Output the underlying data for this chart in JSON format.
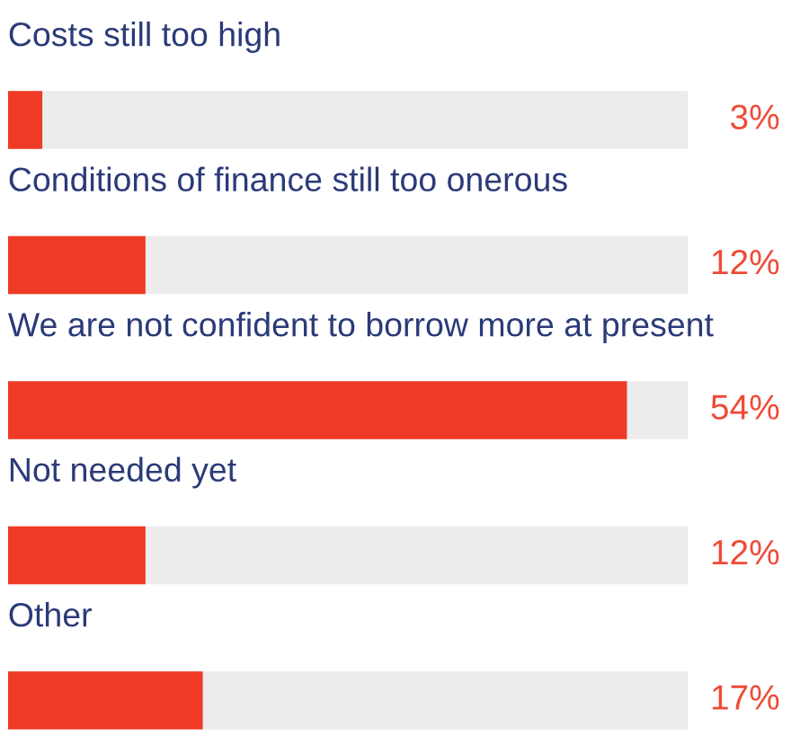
{
  "chart_data": {
    "type": "bar",
    "orientation": "horizontal",
    "categories": [
      "Costs still too high",
      "Conditions of finance still too onerous",
      "We are not confident to borrow more at present",
      "Not needed yet",
      "Other"
    ],
    "values": [
      3,
      12,
      54,
      12,
      17
    ],
    "value_labels": [
      "3%",
      "12%",
      "54%",
      "12%",
      "17%"
    ],
    "color": "#ef3b26"
  }
}
